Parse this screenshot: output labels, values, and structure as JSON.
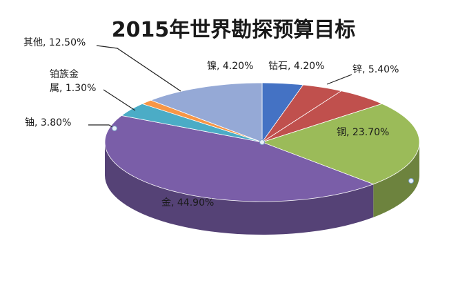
{
  "chart_data": {
    "type": "pie",
    "title": "2015年世界勘探预算目标",
    "categories": [
      "镍",
      "钴石",
      "锌",
      "铜",
      "金",
      "铀",
      "铂族金属",
      "其他"
    ],
    "values": [
      4.2,
      4.2,
      5.4,
      23.7,
      44.9,
      3.8,
      1.3,
      12.5
    ],
    "data_labels": [
      "镍, 4.20%",
      "钴石, 4.20%",
      "锌, 5.40%",
      "铜, 23.70%",
      "金, 44.90%",
      "铀, 3.80%",
      "铂族金\n属, 1.30%",
      "其他, 12.50%"
    ],
    "colors": [
      "#4472C4",
      "#C0504D",
      "#C0504D",
      "#9BBB59",
      "#7A5EA8",
      "#4BACC6",
      "#F79646",
      "#95A9D6"
    ]
  }
}
